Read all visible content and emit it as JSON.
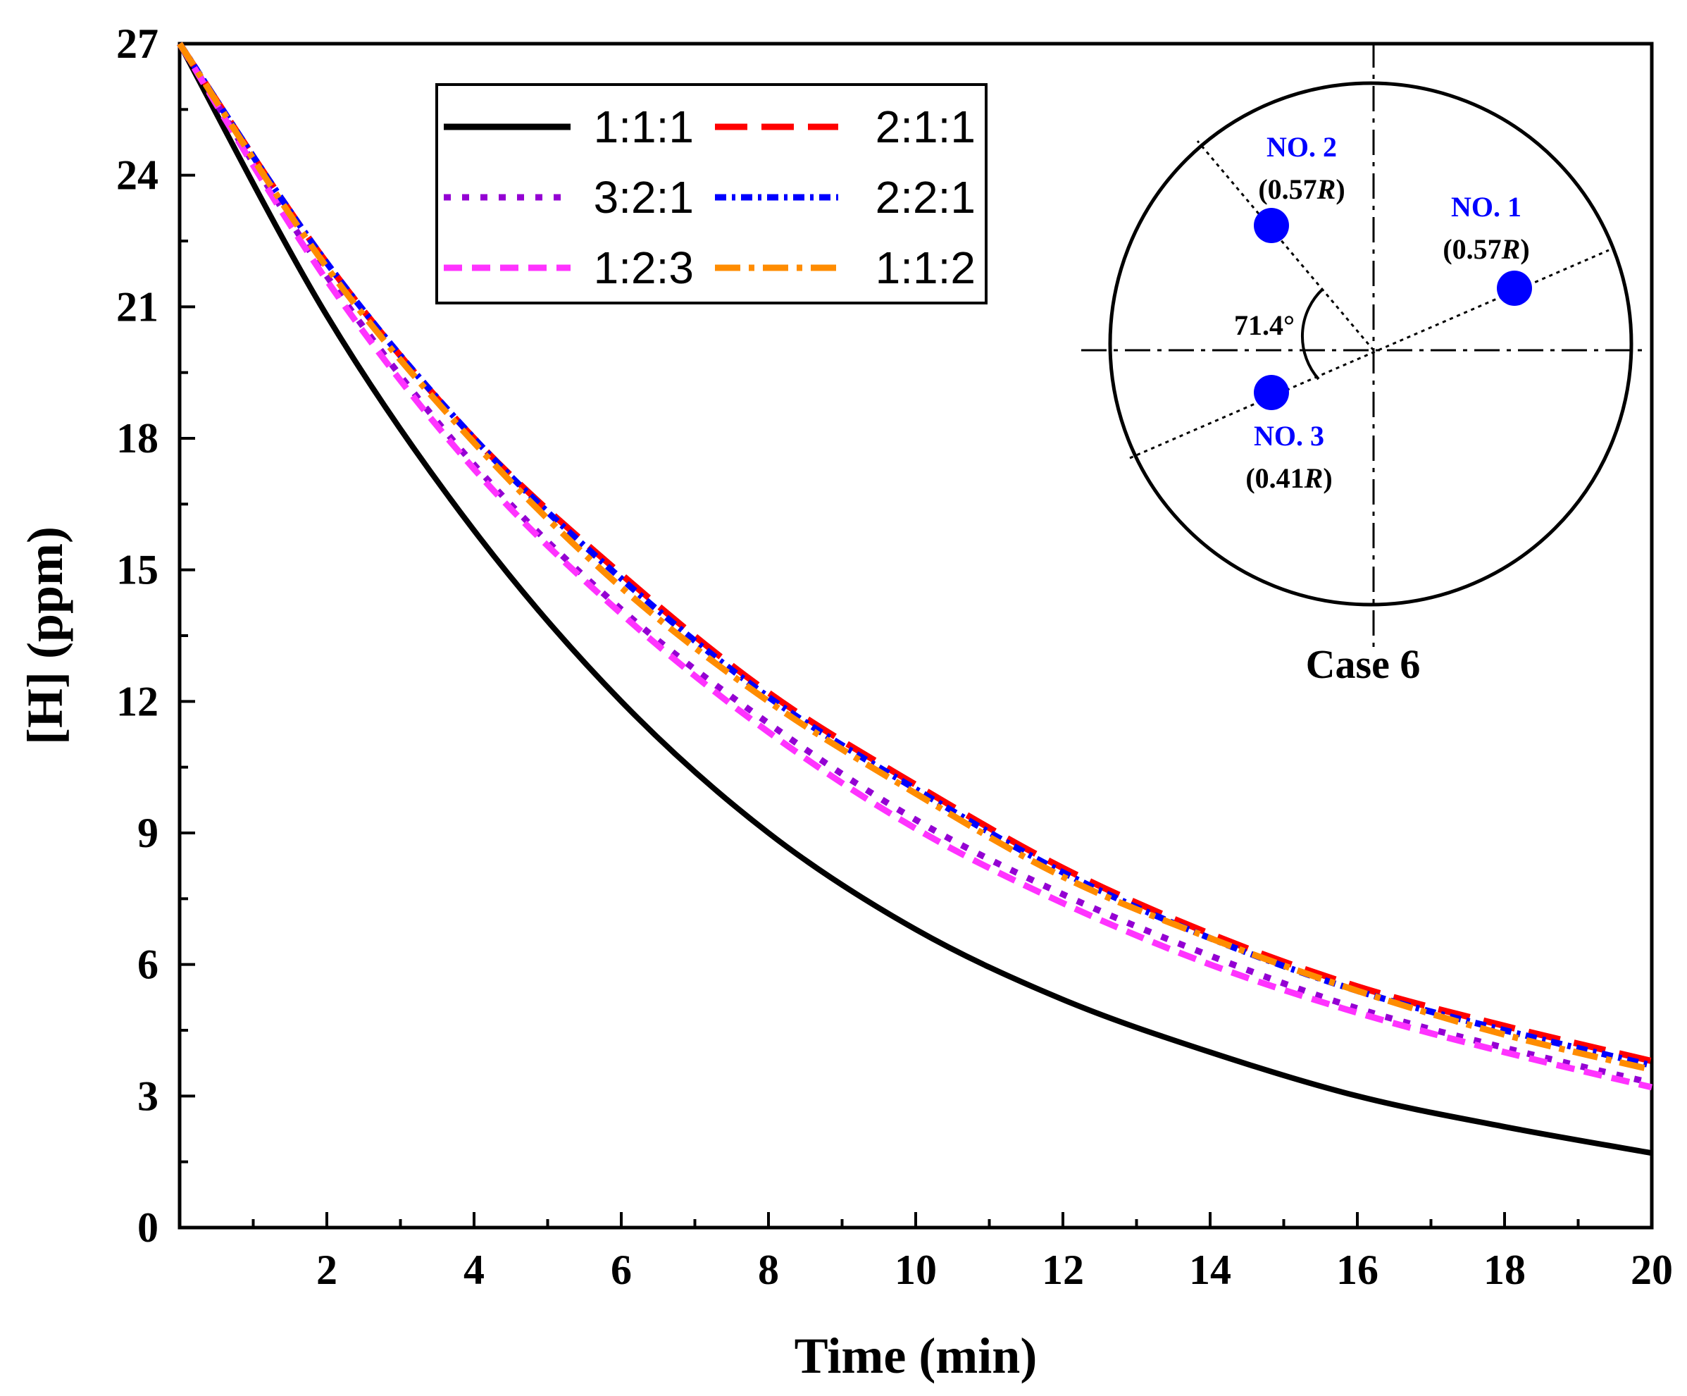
{
  "chart_data": {
    "type": "line",
    "xlabel": "Time (min)",
    "ylabel": "[H] (ppm)",
    "xlim": [
      0,
      20
    ],
    "ylim": [
      0,
      27
    ],
    "x_ticks": [
      2,
      4,
      6,
      8,
      10,
      12,
      14,
      16,
      18,
      20
    ],
    "y_ticks": [
      0,
      3,
      6,
      9,
      12,
      15,
      18,
      21,
      24,
      27
    ],
    "legend_position": "top-left",
    "series": [
      {
        "name": "1:1:1",
        "color": "#000000",
        "style": "solid",
        "x": [
          0,
          2,
          4,
          6,
          8,
          10,
          12,
          14,
          16,
          18,
          20
        ],
        "y": [
          27,
          20.8,
          15.9,
          12.0,
          9.0,
          6.8,
          5.2,
          4.0,
          3.0,
          2.3,
          1.7
        ]
      },
      {
        "name": "2:1:1",
        "color": "#ff0000",
        "style": "longdash",
        "x": [
          0,
          2,
          4,
          6,
          8,
          10,
          12,
          14,
          16,
          18,
          20
        ],
        "y": [
          27,
          22.0,
          18.0,
          14.9,
          12.2,
          10.1,
          8.2,
          6.7,
          5.5,
          4.6,
          3.8
        ]
      },
      {
        "name": "3:2:1",
        "color": "#9400d3",
        "style": "dot",
        "x": [
          0,
          2,
          4,
          6,
          8,
          10,
          12,
          14,
          16,
          18,
          20
        ],
        "y": [
          27,
          21.7,
          17.4,
          14.1,
          11.5,
          9.3,
          7.6,
          6.2,
          5.0,
          4.1,
          3.3
        ]
      },
      {
        "name": "2:2:1",
        "color": "#0000ff",
        "style": "dashdot-fine",
        "x": [
          0,
          2,
          4,
          6,
          8,
          10,
          12,
          14,
          16,
          18,
          20
        ],
        "y": [
          27,
          22.0,
          18.0,
          14.8,
          12.1,
          10.0,
          8.1,
          6.6,
          5.4,
          4.5,
          3.7
        ]
      },
      {
        "name": "1:2:3",
        "color": "#ff33ff",
        "style": "shortdash",
        "x": [
          0,
          2,
          4,
          6,
          8,
          10,
          12,
          14,
          16,
          18,
          20
        ],
        "y": [
          27,
          21.6,
          17.3,
          14.0,
          11.3,
          9.1,
          7.4,
          6.0,
          4.9,
          4.0,
          3.2
        ]
      },
      {
        "name": "1:1:2",
        "color": "#ff8c00",
        "style": "dashdot",
        "x": [
          0,
          2,
          4,
          6,
          8,
          10,
          12,
          14,
          16,
          18,
          20
        ],
        "y": [
          27,
          21.9,
          17.9,
          14.6,
          12.0,
          9.9,
          8.0,
          6.6,
          5.4,
          4.4,
          3.6
        ]
      }
    ],
    "inset": {
      "caption": "Case 6",
      "angle_label": "71.4°",
      "point_color": "#0000ff",
      "points": [
        {
          "label": "NO. 1",
          "radius_label": "(0.57",
          "radius_unit": "R",
          "radius_close": ")"
        },
        {
          "label": "NO. 2",
          "radius_label": "(0.57",
          "radius_unit": "R",
          "radius_close": ")"
        },
        {
          "label": "NO. 3",
          "radius_label": "(0.41",
          "radius_unit": "R",
          "radius_close": ")"
        }
      ]
    }
  }
}
